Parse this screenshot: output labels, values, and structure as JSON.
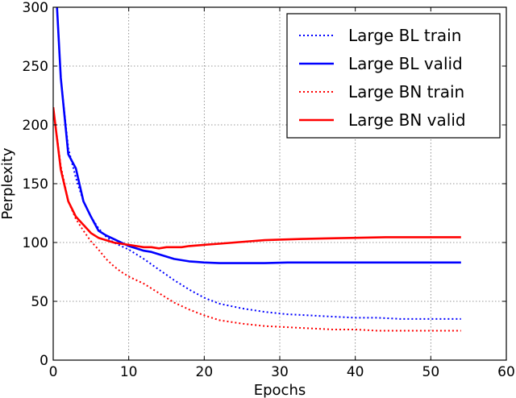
{
  "chart_data": {
    "type": "line",
    "title": "",
    "xlabel": "Epochs",
    "ylabel": "Perplexity",
    "xlim": [
      0,
      60
    ],
    "ylim": [
      0,
      300
    ],
    "xticks": [
      0,
      10,
      20,
      30,
      40,
      50,
      60
    ],
    "yticks": [
      0,
      50,
      100,
      150,
      200,
      250,
      300
    ],
    "grid": true,
    "legend_position": "top-right",
    "series": [
      {
        "name": "Large BL train",
        "color": "#0000ff",
        "style": "dotted",
        "x": [
          0.5,
          1,
          2,
          3,
          4,
          5,
          6,
          7,
          8,
          9,
          10,
          12,
          14,
          16,
          18,
          20,
          22,
          25,
          28,
          31,
          34,
          37,
          40,
          43,
          46,
          50,
          54
        ],
        "y": [
          300,
          240,
          180,
          155,
          135,
          122,
          112,
          105,
          100,
          97,
          94,
          86,
          77,
          68,
          60,
          53,
          48,
          44,
          41,
          39,
          38,
          37,
          36,
          36,
          35,
          35,
          35
        ]
      },
      {
        "name": "Large BL valid",
        "color": "#0000ff",
        "style": "solid",
        "x": [
          0.5,
          1,
          2,
          3,
          4,
          5,
          6,
          7,
          8,
          9,
          10,
          11,
          12,
          13,
          14,
          15,
          16,
          17,
          18,
          19,
          20,
          22,
          25,
          28,
          31,
          34,
          37,
          40,
          43,
          46,
          50,
          54
        ],
        "y": [
          300,
          240,
          175,
          163,
          135,
          122,
          110,
          106,
          103,
          100,
          97,
          95,
          93,
          92,
          90,
          88,
          86,
          85,
          84,
          83.5,
          83,
          82.5,
          82.5,
          82.5,
          83,
          83,
          83,
          83,
          83,
          83,
          83,
          83
        ]
      },
      {
        "name": "Large BN train",
        "color": "#ff0000",
        "style": "dotted",
        "x": [
          0,
          1,
          2,
          3,
          4,
          5,
          6,
          7,
          8,
          9,
          10,
          12,
          14,
          16,
          18,
          20,
          22,
          25,
          28,
          31,
          34,
          37,
          40,
          43,
          46,
          50,
          54
        ],
        "y": [
          215,
          165,
          135,
          120,
          110,
          101,
          94,
          86,
          80,
          75,
          71,
          65,
          57,
          49,
          43,
          38,
          34,
          31,
          29,
          28,
          27,
          26,
          26,
          25,
          25,
          25,
          25
        ]
      },
      {
        "name": "Large BN valid",
        "color": "#ff0000",
        "style": "solid",
        "x": [
          0,
          1,
          2,
          3,
          4,
          5,
          6,
          7,
          8,
          9,
          10,
          11,
          12,
          13,
          14,
          15,
          16,
          17,
          18,
          20,
          22,
          24,
          26,
          28,
          30,
          33,
          36,
          40,
          44,
          48,
          54
        ],
        "y": [
          215,
          162,
          135,
          122,
          115,
          108,
          104,
          102,
          100,
          99,
          98,
          97,
          96,
          96,
          95,
          96,
          96,
          96,
          97,
          98,
          99,
          100,
          101,
          102,
          102.5,
          103,
          103.5,
          104,
          104.5,
          104.5,
          104.5
        ]
      }
    ]
  }
}
